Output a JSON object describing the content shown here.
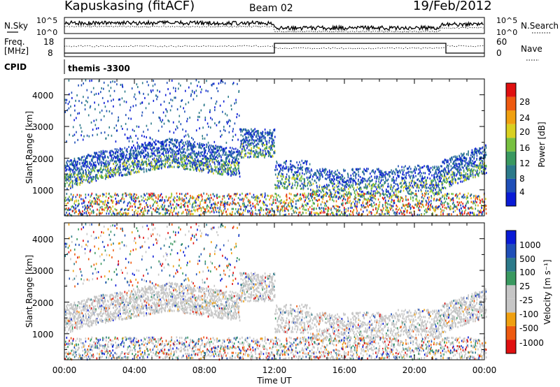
{
  "header": {
    "station": "Kapuskasing (fitACF)",
    "beam": "Beam 02",
    "date": "19/Feb/2012"
  },
  "top_strip": {
    "left_label": "N.Sky",
    "left_ticks": [
      "10^5",
      "10^0"
    ],
    "right_ticks": [
      "10^5",
      "10^0"
    ],
    "right_label": "N.Search"
  },
  "freq_strip": {
    "left_label_line1": "Freq.",
    "left_label_line2": "[MHz]",
    "left_ticks": [
      "18",
      "8"
    ],
    "right_ticks": [
      "60",
      "0"
    ],
    "right_label": "Nave"
  },
  "cpid": {
    "label": "CPID",
    "value": "themis -3300"
  },
  "colors": {
    "power": [
      "#0a1bd6",
      "#1f4fb8",
      "#2c7a8a",
      "#3a9960",
      "#77c040",
      "#d9d020",
      "#f0a010",
      "#ee5a10",
      "#e01010"
    ],
    "velocity": [
      "#e01010",
      "#ee5a10",
      "#f0a010",
      "#c6c6c6",
      "#c6c6c6",
      "#3a9960",
      "#2c7a8a",
      "#1f4fb8",
      "#0a1bd6"
    ],
    "ground_scatter": "#c6c6c6"
  },
  "chart_data": [
    {
      "type": "heatmap",
      "panel": "power",
      "ylabel": "Slant Range [km]",
      "ylim": [
        180,
        4500
      ],
      "yticks": [
        "1000",
        "2000",
        "3000",
        "4000"
      ],
      "xlim": [
        0,
        24
      ],
      "colorbar_label": "Power [dB]",
      "colorbar_ticks": [
        "4",
        "8",
        "12",
        "16",
        "20",
        "24",
        "28"
      ],
      "colorbar_range": [
        0,
        30
      ]
    },
    {
      "type": "heatmap",
      "panel": "velocity",
      "ylabel": "Slant Range [km]",
      "ylim": [
        180,
        4500
      ],
      "yticks": [
        "1000",
        "2000",
        "3000",
        "4000"
      ],
      "xlim": [
        0,
        24
      ],
      "xticks": [
        "00:00",
        "04:00",
        "08:00",
        "12:00",
        "16:00",
        "20:00",
        "00:00"
      ],
      "xlabel": "Time UT",
      "colorbar_label": "Velocity [m s⁻¹]",
      "colorbar_ticks": [
        "1000",
        "500",
        "100",
        "25",
        "-25",
        "-100",
        "-500",
        "-1000"
      ]
    }
  ]
}
